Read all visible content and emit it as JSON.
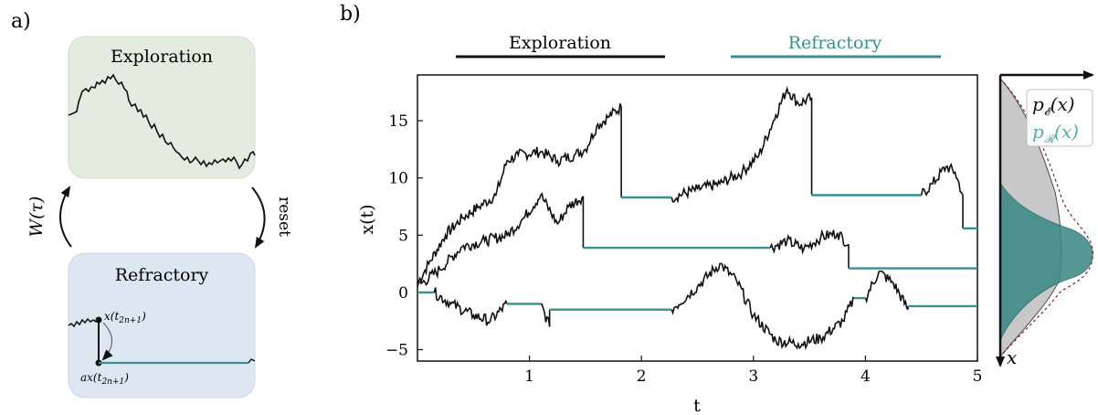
{
  "panel_a": {
    "label": "a)",
    "exploration_title": "Exploration",
    "refractory_title": "Refractory",
    "w_label": "W(τ)",
    "reset_label": "reset",
    "x_top_base": "x(t",
    "x_top_sub": "2n+1",
    "x_top_close": ")",
    "x_bot_base": "ax(t",
    "x_bot_sub": "2n+1",
    "x_bot_close": ")"
  },
  "panel_b": {
    "label": "b)",
    "legend_exploration": "Exploration",
    "legend_refractory": "Refractory",
    "ylabel": "x(t)",
    "xlabel": "t"
  },
  "density": {
    "x_label": "x",
    "p_e_base": "p",
    "p_e_sub": "𝓔",
    "p_e_arg": "(x)",
    "p_r_base": "p",
    "p_r_sub": "𝓡",
    "p_r_arg": "(x)"
  },
  "colors": {
    "teal": "#3a8f8f",
    "exploration_box": "#e3ecdf",
    "refractory_box": "#dde7f1",
    "gray_fill": "#c4c4c4",
    "teal_fill": "#3d8a88",
    "dashed": "#8b1a2e"
  },
  "chart_data": {
    "type": "line",
    "xlabel": "t",
    "ylabel": "x(t)",
    "xlim": [
      0,
      5
    ],
    "ylim": [
      -6,
      19
    ],
    "xticks": [
      1,
      2,
      3,
      4,
      5
    ],
    "yticks": [
      -5,
      0,
      5,
      10,
      15
    ],
    "series": [
      {
        "segments": [
          {
            "phase": "exploration",
            "t": [
              0,
              0.1,
              0.25,
              0.4,
              0.55,
              0.7,
              0.8,
              0.9,
              1.1,
              1.25,
              1.4,
              1.5,
              1.6,
              1.7,
              1.82
            ],
            "x": [
              0.8,
              2.5,
              5.0,
              6.5,
              7.5,
              8.5,
              11.5,
              12.0,
              12.3,
              11.5,
              12.0,
              12.5,
              14.5,
              15.3,
              16.2
            ]
          },
          {
            "phase": "refractory",
            "t": [
              1.82,
              2.27
            ],
            "x": [
              8.3,
              8.3
            ]
          },
          {
            "phase": "exploration",
            "t": [
              2.27,
              2.5,
              2.7,
              2.9,
              3.05,
              3.2,
              3.3,
              3.4,
              3.52
            ],
            "x": [
              8.3,
              9.0,
              9.5,
              10.5,
              12.0,
              15.5,
              17.8,
              16.5,
              17.0
            ]
          },
          {
            "phase": "refractory",
            "t": [
              3.52,
              4.5
            ],
            "x": [
              8.5,
              8.5
            ]
          },
          {
            "phase": "exploration",
            "t": [
              4.5,
              4.6,
              4.72,
              4.8,
              4.87
            ],
            "x": [
              8.5,
              9.5,
              11.0,
              10.5,
              8.5
            ]
          },
          {
            "phase": "refractory",
            "t": [
              4.87,
              5.0
            ],
            "x": [
              5.6,
              5.6
            ]
          }
        ]
      },
      {
        "segments": [
          {
            "phase": "exploration",
            "t": [
              0,
              0.2,
              0.4,
              0.6,
              0.8,
              0.95,
              1.1,
              1.25,
              1.35,
              1.48
            ],
            "x": [
              0.5,
              2.0,
              4.0,
              4.5,
              5.0,
              6.5,
              8.5,
              6.0,
              7.5,
              8.4
            ]
          },
          {
            "phase": "refractory",
            "t": [
              1.48,
              3.15
            ],
            "x": [
              3.9,
              3.9
            ]
          },
          {
            "phase": "exploration",
            "t": [
              3.15,
              3.3,
              3.45,
              3.6,
              3.75,
              3.85
            ],
            "x": [
              3.9,
              4.5,
              3.8,
              4.8,
              5.2,
              4.2
            ]
          },
          {
            "phase": "refractory",
            "t": [
              3.85,
              5.0
            ],
            "x": [
              2.1,
              2.1
            ]
          }
        ]
      },
      {
        "segments": [
          {
            "phase": "refractory",
            "t": [
              0,
              0.15
            ],
            "x": [
              0,
              0
            ]
          },
          {
            "phase": "exploration",
            "t": [
              0.15,
              0.3,
              0.5,
              0.65,
              0.8
            ],
            "x": [
              0,
              -1.0,
              -2.0,
              -2.5,
              -1.0
            ]
          },
          {
            "phase": "refractory",
            "t": [
              0.8,
              1.1
            ],
            "x": [
              -1.0,
              -1.0
            ]
          },
          {
            "phase": "exploration",
            "t": [
              1.1,
              1.18
            ],
            "x": [
              -1.0,
              -3.0
            ]
          },
          {
            "phase": "refractory",
            "t": [
              1.18,
              2.27
            ],
            "x": [
              -1.5,
              -1.5
            ]
          },
          {
            "phase": "exploration",
            "t": [
              2.27,
              2.5,
              2.7,
              2.85,
              3.0,
              3.2,
              3.4,
              3.6,
              3.8,
              3.9
            ],
            "x": [
              -1.5,
              0.5,
              2.5,
              1.0,
              -2.0,
              -4.2,
              -4.5,
              -4.0,
              -2.5,
              -0.5
            ]
          },
          {
            "phase": "refractory",
            "t": [
              3.9,
              4.0
            ],
            "x": [
              -0.5,
              -0.5
            ]
          },
          {
            "phase": "exploration",
            "t": [
              4.0,
              4.12,
              4.25,
              4.38
            ],
            "x": [
              -0.5,
              1.8,
              0.8,
              -1.5
            ]
          },
          {
            "phase": "refractory",
            "t": [
              4.38,
              5.0
            ],
            "x": [
              -1.2,
              -1.2
            ]
          }
        ]
      }
    ]
  }
}
